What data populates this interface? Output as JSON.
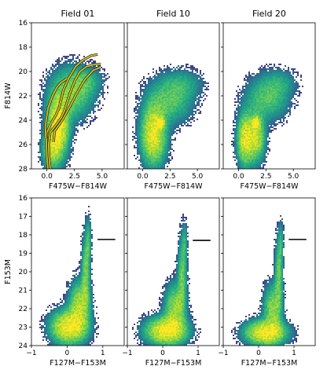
{
  "chart_data": [
    {
      "type": "heatmap",
      "subtype": "color-magnitude-diagram",
      "title": "Field 01",
      "xlabel": "F475W−F814W",
      "ylabel": "F814W",
      "xlim": [
        -1.4,
        7.0
      ],
      "ylim": [
        28,
        16
      ],
      "y_inverted": true,
      "xticks": [
        0.0,
        2.5,
        5.0
      ],
      "xtick_labels": [
        "0.0",
        "2.5",
        "5.0"
      ],
      "yticks": [
        16,
        18,
        20,
        22,
        24,
        26,
        28
      ],
      "ytick_labels": [
        "16",
        "18",
        "20",
        "22",
        "24",
        "26",
        "28"
      ],
      "colormap": "viridis",
      "density_components": [
        {
          "x": 1.0,
          "y": 24.6,
          "sx": 0.6,
          "sy": 1.5,
          "w": 1.0
        },
        {
          "x": 2.2,
          "y": 21.8,
          "sx": 1.2,
          "sy": 1.3,
          "w": 0.45
        },
        {
          "x": 0.4,
          "y": 26.5,
          "sx": 0.5,
          "sy": 0.9,
          "w": 0.5
        },
        {
          "x": 3.5,
          "y": 20.8,
          "sx": 1.0,
          "sy": 0.7,
          "w": 0.2
        }
      ],
      "isochrone_color": "#d4c21a",
      "isochrones": [
        [
          [
            0.1,
            28.0
          ],
          [
            0.0,
            27.0
          ],
          [
            -0.05,
            26.0
          ],
          [
            0.0,
            25.0
          ],
          [
            0.4,
            24.2
          ],
          [
            0.8,
            23.6
          ],
          [
            1.1,
            23.0
          ],
          [
            1.5,
            21.5
          ],
          [
            2.0,
            20.5
          ],
          [
            2.6,
            19.6
          ],
          [
            3.2,
            19.1
          ],
          [
            4.0,
            18.7
          ],
          [
            4.6,
            18.6
          ]
        ],
        [
          [
            0.3,
            28.0
          ],
          [
            0.2,
            27.0
          ],
          [
            0.15,
            26.0
          ],
          [
            0.3,
            25.0
          ],
          [
            0.9,
            24.3
          ],
          [
            1.3,
            23.8
          ],
          [
            1.6,
            23.2
          ],
          [
            2.0,
            22.0
          ],
          [
            2.5,
            20.8
          ],
          [
            3.0,
            20.0
          ],
          [
            3.6,
            19.6
          ],
          [
            4.4,
            19.4
          ],
          [
            4.9,
            19.4
          ]
        ],
        [
          [
            -0.1,
            25.5
          ],
          [
            -0.15,
            24.5
          ],
          [
            0.1,
            23.0
          ],
          [
            0.5,
            22.0
          ],
          [
            0.9,
            21.3
          ],
          [
            1.3,
            20.9
          ],
          [
            1.8,
            20.6
          ]
        ],
        [
          [
            0.6,
            25.8
          ],
          [
            0.7,
            24.9
          ],
          [
            1.4,
            24.0
          ],
          [
            2.0,
            23.0
          ],
          [
            2.7,
            21.8
          ],
          [
            3.4,
            20.7
          ],
          [
            4.2,
            19.9
          ],
          [
            4.8,
            19.7
          ]
        ]
      ]
    },
    {
      "type": "heatmap",
      "subtype": "color-magnitude-diagram",
      "title": "Field 10",
      "xlabel": "F475W−F814W",
      "ylabel": "",
      "xlim": [
        -1.4,
        7.0
      ],
      "ylim": [
        28,
        16
      ],
      "y_inverted": true,
      "xticks": [
        0.0,
        2.5,
        5.0
      ],
      "xtick_labels": [
        "0.0",
        "2.5",
        "5.0"
      ],
      "colormap": "viridis",
      "density_components": [
        {
          "x": 1.0,
          "y": 25.2,
          "sx": 0.7,
          "sy": 1.5,
          "w": 0.9
        },
        {
          "x": 1.6,
          "y": 24.2,
          "sx": 0.22,
          "sy": 0.25,
          "w": 1.0
        },
        {
          "x": 2.5,
          "y": 22.3,
          "sx": 1.3,
          "sy": 1.2,
          "w": 0.35
        },
        {
          "x": 3.8,
          "y": 21.0,
          "sx": 1.1,
          "sy": 0.7,
          "w": 0.15
        }
      ]
    },
    {
      "type": "heatmap",
      "subtype": "color-magnitude-diagram",
      "title": "Field 20",
      "xlabel": "F475W−F814W",
      "ylabel": "",
      "xlim": [
        -1.4,
        7.0
      ],
      "ylim": [
        28,
        16
      ],
      "y_inverted": true,
      "xticks": [
        0.0,
        2.5,
        5.0
      ],
      "xtick_labels": [
        "0.0",
        "2.5",
        "5.0"
      ],
      "colormap": "viridis",
      "density_components": [
        {
          "x": 0.6,
          "y": 25.6,
          "sx": 0.45,
          "sy": 1.3,
          "w": 0.8
        },
        {
          "x": 1.6,
          "y": 25.4,
          "sx": 0.5,
          "sy": 1.2,
          "w": 0.7
        },
        {
          "x": 1.6,
          "y": 24.2,
          "sx": 0.22,
          "sy": 0.25,
          "w": 1.0
        },
        {
          "x": 2.6,
          "y": 22.2,
          "sx": 1.2,
          "sy": 1.1,
          "w": 0.35
        },
        {
          "x": 3.8,
          "y": 20.9,
          "sx": 1.0,
          "sy": 0.7,
          "w": 0.15
        }
      ]
    },
    {
      "type": "heatmap",
      "subtype": "color-magnitude-diagram",
      "title": "",
      "xlabel": "F127M−F153M",
      "ylabel": "F153M",
      "xlim": [
        -1.0,
        1.6
      ],
      "ylim": [
        24,
        16
      ],
      "y_inverted": true,
      "xticks": [
        -1,
        0,
        1
      ],
      "xtick_labels": [
        "−1",
        "0",
        "1"
      ],
      "yticks": [
        16,
        17,
        18,
        19,
        20,
        21,
        22,
        23,
        24
      ],
      "ytick_labels": [
        "16",
        "17",
        "18",
        "19",
        "20",
        "21",
        "22",
        "23",
        "24"
      ],
      "colormap": "viridis",
      "density_components": [
        {
          "x": 0.05,
          "y": 23.0,
          "sx": 0.3,
          "sy": 0.55,
          "w": 1.0
        },
        {
          "x": 0.35,
          "y": 21.8,
          "sx": 0.18,
          "sy": 0.8,
          "w": 0.6
        },
        {
          "x": 0.52,
          "y": 20.0,
          "sx": 0.07,
          "sy": 1.2,
          "w": 0.45
        },
        {
          "x": 0.6,
          "y": 18.3,
          "sx": 0.05,
          "sy": 0.8,
          "w": 0.25
        }
      ],
      "marker_line": {
        "x": [
          0.85,
          1.35
        ],
        "y": 18.25
      }
    },
    {
      "type": "heatmap",
      "subtype": "color-magnitude-diagram",
      "title": "",
      "xlabel": "F127M−F153M",
      "ylabel": "",
      "xlim": [
        -1.0,
        1.6
      ],
      "ylim": [
        24,
        16
      ],
      "y_inverted": true,
      "xticks": [
        -1,
        0,
        1
      ],
      "xtick_labels": [
        "−1",
        "0",
        "1"
      ],
      "colormap": "viridis",
      "density_components": [
        {
          "x": 0.1,
          "y": 23.2,
          "sx": 0.35,
          "sy": 0.45,
          "w": 1.0
        },
        {
          "x": 0.35,
          "y": 22.0,
          "sx": 0.18,
          "sy": 0.8,
          "w": 0.55
        },
        {
          "x": 0.55,
          "y": 20.2,
          "sx": 0.08,
          "sy": 1.2,
          "w": 0.4
        },
        {
          "x": 0.62,
          "y": 18.4,
          "sx": 0.05,
          "sy": 0.7,
          "w": 0.2
        }
      ],
      "marker_line": {
        "x": [
          0.85,
          1.35
        ],
        "y": 18.3
      }
    },
    {
      "type": "heatmap",
      "subtype": "color-magnitude-diagram",
      "title": "",
      "xlabel": "F127M−F153M",
      "ylabel": "",
      "xlim": [
        -1.0,
        1.6
      ],
      "ylim": [
        24,
        16
      ],
      "y_inverted": true,
      "xticks": [
        -1,
        0,
        1
      ],
      "xtick_labels": [
        "−1",
        "0",
        "1"
      ],
      "colormap": "viridis",
      "density_components": [
        {
          "x": 0.2,
          "y": 23.3,
          "sx": 0.35,
          "sy": 0.4,
          "w": 1.0
        },
        {
          "x": 0.4,
          "y": 22.0,
          "sx": 0.16,
          "sy": 0.8,
          "w": 0.5
        },
        {
          "x": 0.57,
          "y": 20.2,
          "sx": 0.07,
          "sy": 1.2,
          "w": 0.4
        },
        {
          "x": 0.63,
          "y": 18.4,
          "sx": 0.05,
          "sy": 0.7,
          "w": 0.2
        }
      ],
      "marker_line": {
        "x": [
          0.85,
          1.35
        ],
        "y": 18.25
      }
    }
  ]
}
